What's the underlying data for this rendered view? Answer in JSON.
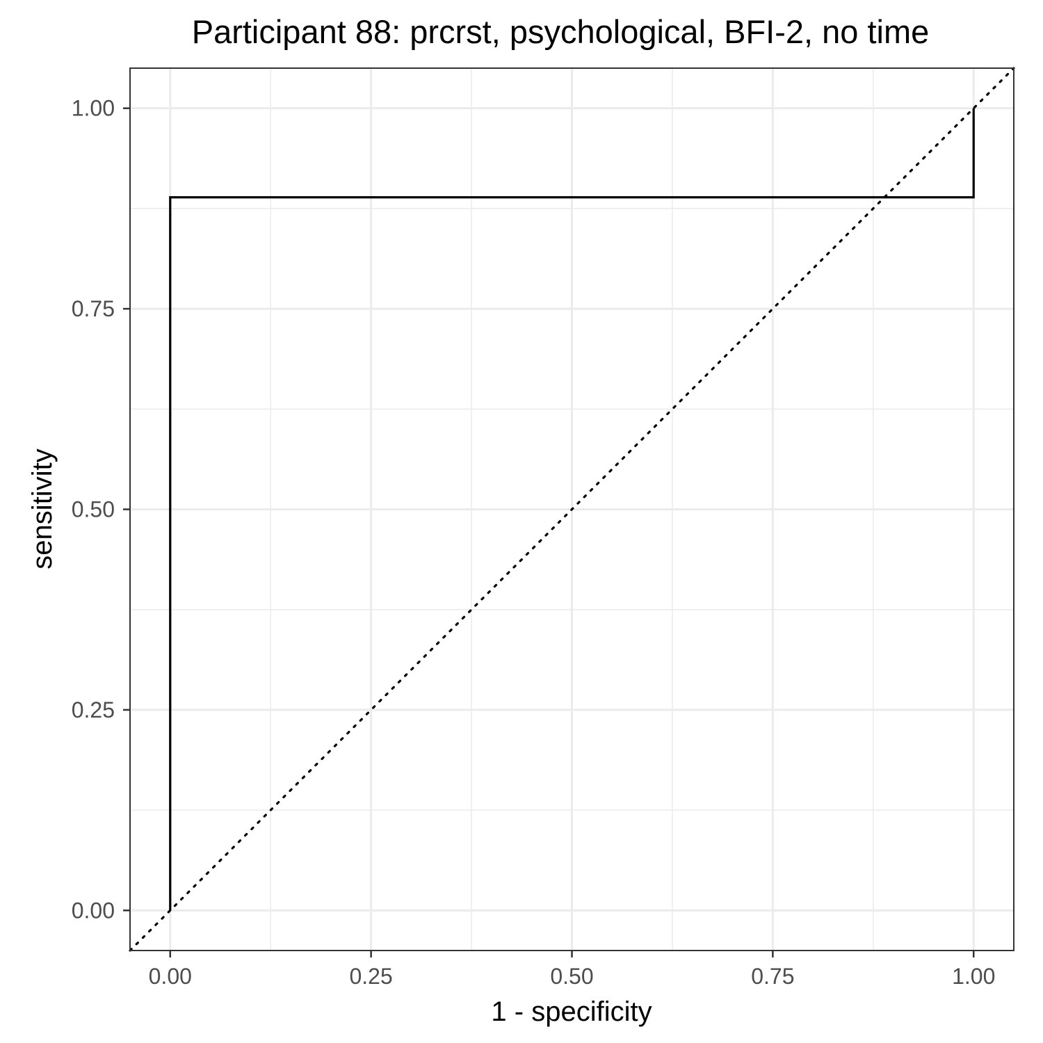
{
  "chart_data": {
    "type": "line",
    "title": "Participant 88: prcrst, psychological, BFI-2, no time",
    "xlabel": "1 - specificity",
    "ylabel": "sensitivity",
    "xlim": [
      -0.05,
      1.05
    ],
    "ylim": [
      -0.05,
      1.05
    ],
    "x_ticks": [
      0,
      0.25,
      0.5,
      0.75,
      1
    ],
    "y_ticks": [
      0,
      0.25,
      0.5,
      0.75,
      1
    ],
    "x_tick_labels": [
      "0.00",
      "0.25",
      "0.50",
      "0.75",
      "1.00"
    ],
    "y_tick_labels": [
      "0.00",
      "0.25",
      "0.50",
      "0.75",
      "1.00"
    ],
    "minor_breaks": [
      0.125,
      0.375,
      0.625,
      0.875
    ],
    "grid": true,
    "series": [
      {
        "name": "roc",
        "style": "step",
        "color": "#000000",
        "points": [
          {
            "x": 0,
            "y": 0
          },
          {
            "x": 0,
            "y": 0.889
          },
          {
            "x": 1,
            "y": 0.889
          },
          {
            "x": 1,
            "y": 1
          }
        ]
      },
      {
        "name": "reference",
        "style": "dotted",
        "color": "#000000",
        "points": [
          {
            "x": -0.05,
            "y": -0.05
          },
          {
            "x": 1.05,
            "y": 1.05
          }
        ]
      }
    ]
  }
}
